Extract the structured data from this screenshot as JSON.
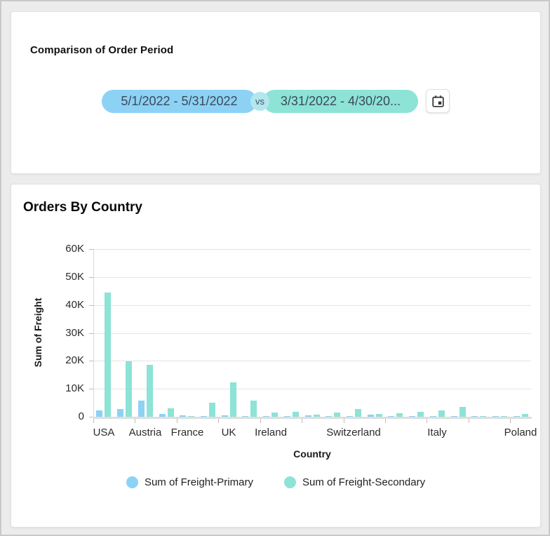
{
  "comparison_card": {
    "title": "Comparison of Order Period",
    "primary_range": "5/1/2022 - 5/31/2022",
    "vs_label": "vs",
    "secondary_range": "3/31/2022 - 4/30/20...",
    "calendar_icon": "calendar-icon",
    "primary_color": "#8cd2f5",
    "secondary_color": "#8ce3d6"
  },
  "orders_card": {
    "title": "Orders By Country"
  },
  "chart_data": {
    "type": "bar",
    "title": "Orders By Country",
    "xlabel": "Country",
    "ylabel": "Sum of Freight",
    "ylim": [
      0,
      60000
    ],
    "yticks": [
      0,
      10000,
      20000,
      30000,
      40000,
      50000,
      60000
    ],
    "ytick_labels": [
      "0",
      "10K",
      "20K",
      "30K",
      "40K",
      "50K",
      "60K"
    ],
    "grid": "horizontal",
    "num_groups": 21,
    "x_tick_every_groups": 2,
    "visible_x_labels": [
      {
        "label": "USA",
        "group": 1
      },
      {
        "label": "Austria",
        "group": 3
      },
      {
        "label": "France",
        "group": 5
      },
      {
        "label": "UK",
        "group": 7
      },
      {
        "label": "Ireland",
        "group": 9
      },
      {
        "label": "Switzerland",
        "group": 13
      },
      {
        "label": "Italy",
        "group": 17
      },
      {
        "label": "Poland",
        "group": 21
      }
    ],
    "series": [
      {
        "name": "Sum of Freight-Primary",
        "color": "#8cd2f5",
        "values": [
          2300,
          2800,
          5700,
          1100,
          600,
          100,
          400,
          300,
          100,
          100,
          500,
          100,
          250,
          700,
          50,
          200,
          100,
          50,
          150,
          100,
          50
        ]
      },
      {
        "name": "Sum of Freight-Secondary",
        "color": "#8ce3d6",
        "values": [
          44500,
          19800,
          18500,
          3000,
          150,
          4900,
          12300,
          5800,
          1600,
          1800,
          700,
          1400,
          2700,
          900,
          1200,
          1800,
          2200,
          3400,
          200,
          100,
          1000
        ]
      }
    ],
    "legend_position": "bottom"
  }
}
